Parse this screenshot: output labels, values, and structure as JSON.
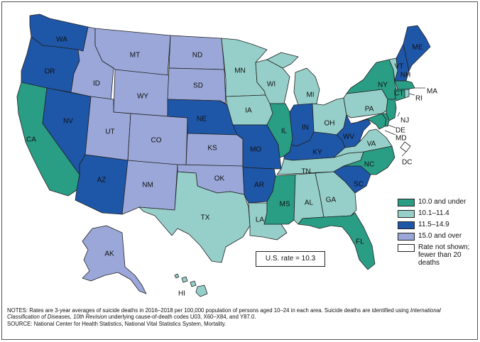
{
  "legend": [
    {
      "label": "10.0 and under",
      "color": "#2a9d85"
    },
    {
      "label": "10.1–11.4",
      "color": "#96cfc9"
    },
    {
      "label": "11.5–14.9",
      "color": "#1e56a8"
    },
    {
      "label": "15.0 and over",
      "color": "#9aa7d8"
    },
    {
      "label": "Rate not shown; fewer than 20 deaths",
      "color": "#ffffff"
    }
  ],
  "us_rate": "U.S. rate = 10.3",
  "notes": {
    "line1_a": "NOTES: Rates are 3-year averages of suicide deaths in 2016–2018 per 100,000 population of persons aged 10–24 in each area. Suicide deaths are identified using ",
    "line1_italic": "International Classification of Diseases, 10th Revision",
    "line1_b": " underlying cause-of-death codes U03, X60–X84, and Y87.0.",
    "source": "SOURCE: National Center for Health Statistics, National Vital Statistics System, Mortality."
  },
  "states": {
    "WA": {
      "label": "WA",
      "cat": 2
    },
    "OR": {
      "label": "OR",
      "cat": 2
    },
    "CA": {
      "label": "CA",
      "cat": 0
    },
    "NV": {
      "label": "NV",
      "cat": 2
    },
    "ID": {
      "label": "ID",
      "cat": 3
    },
    "MT": {
      "label": "MT",
      "cat": 3
    },
    "WY": {
      "label": "WY",
      "cat": 3
    },
    "UT": {
      "label": "UT",
      "cat": 3
    },
    "AZ": {
      "label": "AZ",
      "cat": 2
    },
    "CO": {
      "label": "CO",
      "cat": 3
    },
    "NM": {
      "label": "NM",
      "cat": 3
    },
    "ND": {
      "label": "ND",
      "cat": 3
    },
    "SD": {
      "label": "SD",
      "cat": 3
    },
    "NE": {
      "label": "NE",
      "cat": 2
    },
    "KS": {
      "label": "KS",
      "cat": 3
    },
    "OK": {
      "label": "OK",
      "cat": 3
    },
    "TX": {
      "label": "TX",
      "cat": 1
    },
    "MN": {
      "label": "MN",
      "cat": 1
    },
    "IA": {
      "label": "IA",
      "cat": 1
    },
    "MO": {
      "label": "MO",
      "cat": 2
    },
    "AR": {
      "label": "AR",
      "cat": 2
    },
    "LA": {
      "label": "LA",
      "cat": 1
    },
    "WI": {
      "label": "WI",
      "cat": 1
    },
    "IL": {
      "label": "IL",
      "cat": 0
    },
    "MI": {
      "label": "MI",
      "cat": 1
    },
    "IN": {
      "label": "IN",
      "cat": 2
    },
    "OH": {
      "label": "OH",
      "cat": 1
    },
    "KY": {
      "label": "KY",
      "cat": 2
    },
    "TN": {
      "label": "TN",
      "cat": 1
    },
    "MS": {
      "label": "MS",
      "cat": 0
    },
    "AL": {
      "label": "AL",
      "cat": 1
    },
    "GA": {
      "label": "GA",
      "cat": 1
    },
    "FL": {
      "label": "FL",
      "cat": 0
    },
    "SC": {
      "label": "SC",
      "cat": 2
    },
    "NC": {
      "label": "NC",
      "cat": 0
    },
    "VA": {
      "label": "VA",
      "cat": 1
    },
    "WV": {
      "label": "WV",
      "cat": 2
    },
    "PA": {
      "label": "PA",
      "cat": 1
    },
    "NY": {
      "label": "NY",
      "cat": 0
    },
    "NJ": {
      "label": "NJ",
      "cat": 0
    },
    "DE": {
      "label": "DE",
      "cat": 0
    },
    "MD": {
      "label": "MD",
      "cat": 0
    },
    "DC": {
      "label": "DC",
      "cat": 4
    },
    "VT": {
      "label": "VT",
      "cat": 1
    },
    "NH": {
      "label": "NH",
      "cat": 2
    },
    "ME": {
      "label": "ME",
      "cat": 2
    },
    "MA": {
      "label": "MA",
      "cat": 0
    },
    "RI": {
      "label": "RI",
      "cat": 1
    },
    "CT": {
      "label": "CT",
      "cat": 0
    },
    "AK": {
      "label": "AK",
      "cat": 3
    },
    "HI": {
      "label": "HI",
      "cat": 1
    }
  }
}
